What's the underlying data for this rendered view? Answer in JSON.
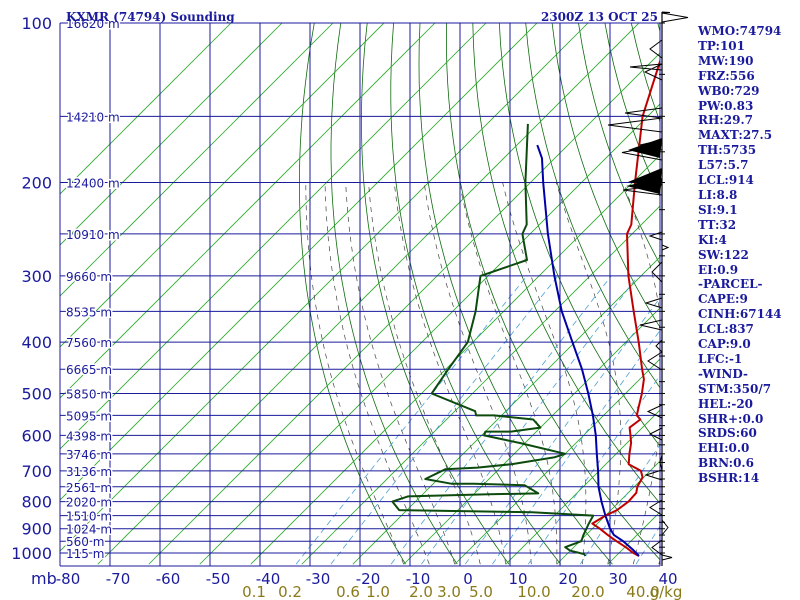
{
  "title": "KXMR (74794) Sounding",
  "time": "2300Z 13 OCT 25",
  "chart_data": {
    "type": "line",
    "subtype": "skew-T log-P sounding",
    "x_unit": "°C",
    "y_unit": "mb",
    "y_axis_label": "mb",
    "pressure_ticks": [
      100,
      200,
      300,
      400,
      500,
      600,
      700,
      800,
      900,
      1000
    ],
    "temp_ticks": [
      -80,
      -70,
      -60,
      -50,
      -40,
      -30,
      -20,
      -10,
      0,
      10,
      20,
      30,
      40
    ],
    "temp_tick_labels": [
      "-80",
      "-70",
      "-60",
      "-50",
      "-40",
      "-30",
      "-20",
      "-10",
      "0",
      "10",
      "20",
      "30",
      "40"
    ],
    "mixing_ratio_labels": [
      "0.1",
      "0.2",
      "0.6",
      "1.0",
      "2.0",
      "3.0",
      "5.0",
      "10.0",
      "20.0",
      "40.0",
      "g/kg"
    ],
    "height_labels": [
      {
        "p": 100,
        "text": "16620 m"
      },
      {
        "p": 150,
        "text": "14210 m"
      },
      {
        "p": 200,
        "text": "12400 m"
      },
      {
        "p": 250,
        "text": "10910 m"
      },
      {
        "p": 300,
        "text": "9660 m"
      },
      {
        "p": 350,
        "text": "8535 m"
      },
      {
        "p": 400,
        "text": "7560 m"
      },
      {
        "p": 450,
        "text": "6665 m"
      },
      {
        "p": 500,
        "text": "5850 m"
      },
      {
        "p": 550,
        "text": "5095 m"
      },
      {
        "p": 600,
        "text": "4398 m"
      },
      {
        "p": 650,
        "text": "3746 m"
      },
      {
        "p": 700,
        "text": "3136 m"
      },
      {
        "p": 750,
        "text": "2561 m"
      },
      {
        "p": 800,
        "text": "2020 m"
      },
      {
        "p": 850,
        "text": "1510 m"
      },
      {
        "p": 900,
        "text": "1024 m"
      },
      {
        "p": 950,
        "text": "560 m"
      },
      {
        "p": 1000,
        "text": "115 m"
      }
    ],
    "series": [
      {
        "name": "Temperature",
        "color": "#c00000",
        "points": [
          [
            1013,
            24.5
          ],
          [
            1000,
            22.8
          ],
          [
            975,
            20.2
          ],
          [
            950,
            17.2
          ],
          [
            925,
            14.3
          ],
          [
            900,
            11.5
          ],
          [
            880,
            9.0
          ],
          [
            850,
            10.0
          ],
          [
            830,
            11.2
          ],
          [
            800,
            11.8
          ],
          [
            770,
            11.6
          ],
          [
            750,
            10.6
          ],
          [
            720,
            9.8
          ],
          [
            700,
            8.2
          ],
          [
            680,
            4.5
          ],
          [
            650,
            2.6
          ],
          [
            620,
            0.8
          ],
          [
            600,
            -0.8
          ],
          [
            580,
            -2.5
          ],
          [
            560,
            -2.0
          ],
          [
            550,
            -3.5
          ],
          [
            530,
            -4.8
          ],
          [
            500,
            -6.8
          ],
          [
            470,
            -9.2
          ],
          [
            450,
            -11.5
          ],
          [
            400,
            -17.5
          ],
          [
            350,
            -24.5
          ],
          [
            300,
            -32.5
          ],
          [
            250,
            -41.0
          ],
          [
            240,
            -42.0
          ],
          [
            200,
            -49.5
          ],
          [
            150,
            -61.0
          ],
          [
            100,
            -73.5
          ]
        ]
      },
      {
        "name": "Dewpoint",
        "color": "#0d4a0d",
        "points": [
          [
            1013,
            14.0
          ],
          [
            1005,
            13.4
          ],
          [
            990,
            10.0
          ],
          [
            975,
            8.3
          ],
          [
            950,
            10.3
          ],
          [
            925,
            9.5
          ],
          [
            880,
            8.3
          ],
          [
            850,
            7.6
          ],
          [
            838,
            -5.0
          ],
          [
            830,
            -31.5
          ],
          [
            820,
            -32.5
          ],
          [
            800,
            -34.5
          ],
          [
            782,
            -32.5
          ],
          [
            775,
            -17.0
          ],
          [
            772,
            -7.5
          ],
          [
            745,
            -11.8
          ],
          [
            740,
            -22.0
          ],
          [
            740,
            -26.5
          ],
          [
            725,
            -32.5
          ],
          [
            695,
            -30.5
          ],
          [
            690,
            -24.5
          ],
          [
            680,
            -18.5
          ],
          [
            660,
            -11.5
          ],
          [
            650,
            -10.0
          ],
          [
            620,
            -21.0
          ],
          [
            600,
            -29.5
          ],
          [
            590,
            -30.0
          ],
          [
            590,
            -25.0
          ],
          [
            580,
            -20.0
          ],
          [
            560,
            -23.0
          ],
          [
            550,
            -31.5
          ],
          [
            550,
            -35.0
          ],
          [
            540,
            -36.0
          ],
          [
            500,
            -48.0
          ],
          [
            450,
            -49.5
          ],
          [
            400,
            -51.0
          ],
          [
            350,
            -55.5
          ],
          [
            300,
            -61.5
          ],
          [
            280,
            -55.5
          ],
          [
            250,
            -61.5
          ],
          [
            240,
            -62.5
          ],
          [
            200,
            -71.0
          ],
          [
            155,
            -82.0
          ]
        ]
      },
      {
        "name": "Parcel",
        "color": "#0000a8",
        "points": [
          [
            1013,
            24.5
          ],
          [
            985,
            22.0
          ],
          [
            950,
            18.5
          ],
          [
            925,
            15.5
          ],
          [
            900,
            13.5
          ],
          [
            850,
            10.0
          ],
          [
            800,
            6.5
          ],
          [
            750,
            3.0
          ],
          [
            700,
            -0.2
          ],
          [
            650,
            -3.8
          ],
          [
            600,
            -7.6
          ],
          [
            550,
            -12.1
          ],
          [
            500,
            -17.3
          ],
          [
            450,
            -23.3
          ],
          [
            400,
            -30.5
          ],
          [
            350,
            -38.6
          ],
          [
            300,
            -47.0
          ],
          [
            250,
            -56.5
          ],
          [
            200,
            -67.5
          ],
          [
            180,
            -72.5
          ],
          [
            170,
            -76.0
          ]
        ]
      }
    ],
    "wind_profile": "wind barbs drawn on right-side staff (100–1013 mb)"
  },
  "indices": [
    "WMO:74794",
    "TP:101",
    "MW:190",
    "FRZ:556",
    "WB0:729",
    "PW:0.83",
    "RH:29.7",
    "MAXT:27.5",
    "TH:5735",
    "L57:5.7",
    "LCL:914",
    "LI:8.8",
    "SI:9.1",
    "TT:32",
    "KI:4",
    "SW:122",
    "EI:0.9",
    "-PARCEL-",
    "CAPE:9",
    "CINH:67144",
    "LCL:837",
    "CAP:9.0",
    "LFC:-1",
    "-WIND-",
    "STM:350/7",
    "HEL:-20",
    "SHR+:0.0",
    "SRDS:60",
    "EHI:0.0",
    "BRN:0.6",
    "BSHR:14"
  ],
  "colors": {
    "grid": "#1a1a9c",
    "dry_adiabat": "#0e6b0e",
    "isotherm": "#28a828",
    "moist_adiabat": "#444444",
    "mixing_ratio": "#4aa0d8",
    "temperature": "#c00000",
    "dewpoint": "#0d4a0d",
    "parcel": "#0000a8",
    "mixing_label": "#8a7a1a"
  }
}
